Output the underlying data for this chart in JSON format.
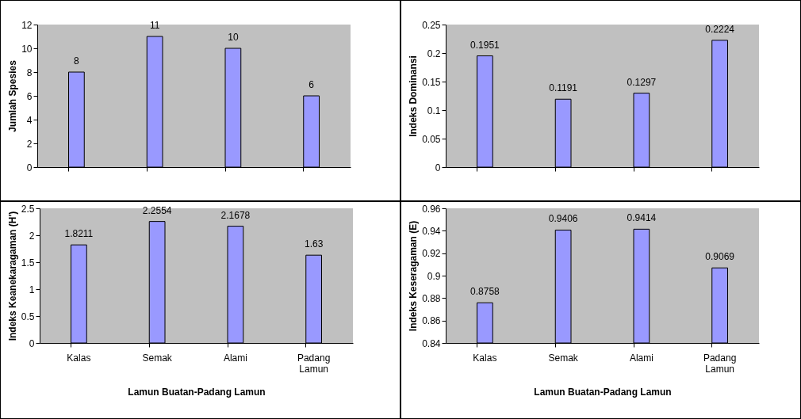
{
  "chart_data": [
    {
      "type": "bar",
      "ylabel": "Jumlah Spesies",
      "categories": [
        null,
        null,
        null,
        null
      ],
      "values": [
        8,
        11,
        10,
        6
      ],
      "color": "#9999ff",
      "ylim": [
        0,
        12
      ],
      "yticks": [
        0,
        2,
        4,
        6,
        8,
        10,
        12
      ],
      "data_labels": true,
      "tick_labels": "y"
    },
    {
      "type": "bar",
      "ylabel": "Indeks Dominansi",
      "categories": [
        null,
        null,
        null,
        null
      ],
      "values": [
        0.1951,
        0.1191,
        0.1297,
        0.2224
      ],
      "color": "#9999ff",
      "ylim": [
        0,
        0.25
      ],
      "yticks": [
        0,
        0.05,
        0.1,
        0.15,
        0.2,
        0.25
      ],
      "data_labels": true,
      "tick_labels": "y"
    },
    {
      "type": "bar",
      "ylabel": "Indeks Keanekaragaman (H')",
      "xlabel": "Lamun Buatan-Padang Lamun",
      "categories": [
        "Kalas",
        "Semak",
        "Alami",
        "Padang Lamun"
      ],
      "values": [
        1.8211,
        2.2554,
        2.1678,
        1.63
      ],
      "color": "#9999ff",
      "ylim": [
        0,
        2.5
      ],
      "yticks": [
        0,
        0.5,
        1,
        1.5,
        2,
        2.5
      ],
      "data_labels": true
    },
    {
      "type": "bar",
      "ylabel": "Indeks Keseragaman (E)",
      "xlabel": "Lamun Buatan-Padang Lamun",
      "categories": [
        "Kalas",
        "Semak",
        "Alami",
        "Padang Lamun"
      ],
      "values": [
        0.8758,
        0.9406,
        0.9414,
        0.9069
      ],
      "color": "#9999ff",
      "ylim": [
        0.84,
        0.96
      ],
      "yticks": [
        0.84,
        0.86,
        0.88,
        0.9,
        0.92,
        0.94,
        0.96
      ],
      "data_labels": true
    }
  ]
}
